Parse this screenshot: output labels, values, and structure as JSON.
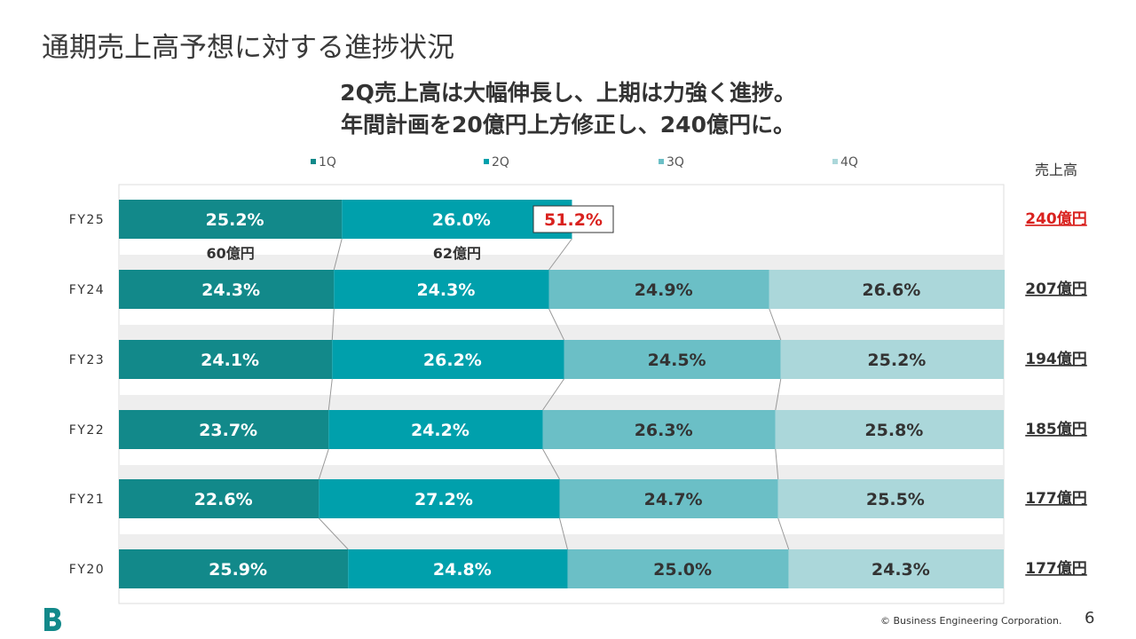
{
  "page": {
    "title": "通期売上高予想に対する進捗状況",
    "headline_line1": "2Q売上高は大幅伸長し、上期は力強く進捗。",
    "headline_line2": "年間計画を20億円上方修正し、240億円に。",
    "sales_header": "売上高",
    "copyright": "© Business Engineering Corporation.",
    "page_number": "6"
  },
  "colors": {
    "q1": "#12898a",
    "q2": "#00a0ac",
    "q3": "#6bbfc6",
    "q4": "#abd7da",
    "highlight": "#d9211e",
    "connector": "#999999",
    "band": "#eeeeee"
  },
  "chart_data": {
    "type": "bar",
    "orientation": "horizontal",
    "stacked": true,
    "percent_stacked": true,
    "categories": [
      "FY25",
      "FY24",
      "FY23",
      "FY22",
      "FY21",
      "FY20"
    ],
    "series": [
      {
        "name": "1Q",
        "values": [
          25.2,
          24.3,
          24.1,
          23.7,
          22.6,
          25.9
        ],
        "labels": [
          "25.2%",
          "24.3%",
          "24.1%",
          "23.7%",
          "22.6%",
          "25.9%"
        ]
      },
      {
        "name": "2Q",
        "values": [
          26.0,
          24.3,
          26.2,
          24.2,
          27.2,
          24.8
        ],
        "labels": [
          "26.0%",
          "24.3%",
          "26.2%",
          "24.2%",
          "27.2%",
          "24.8%"
        ]
      },
      {
        "name": "3Q",
        "values": [
          null,
          24.9,
          24.5,
          26.3,
          24.7,
          25.0
        ],
        "labels": [
          "",
          "24.9%",
          "24.5%",
          "26.3%",
          "24.7%",
          "25.0%"
        ]
      },
      {
        "name": "4Q",
        "values": [
          null,
          26.6,
          25.2,
          25.8,
          25.5,
          24.3
        ],
        "labels": [
          "",
          "26.6%",
          "25.2%",
          "25.8%",
          "25.5%",
          "24.3%"
        ]
      }
    ],
    "xlim": [
      0,
      100
    ],
    "legend_position": "top",
    "annotations": {
      "fy25_q1_amount": "60億円",
      "fy25_q2_amount": "62億円",
      "fy25_first_half_total": "51.2%"
    },
    "sales": [
      "240億円",
      "207億円",
      "194億円",
      "185億円",
      "177億円",
      "177億円"
    ],
    "highlight_sales_index": 0
  }
}
